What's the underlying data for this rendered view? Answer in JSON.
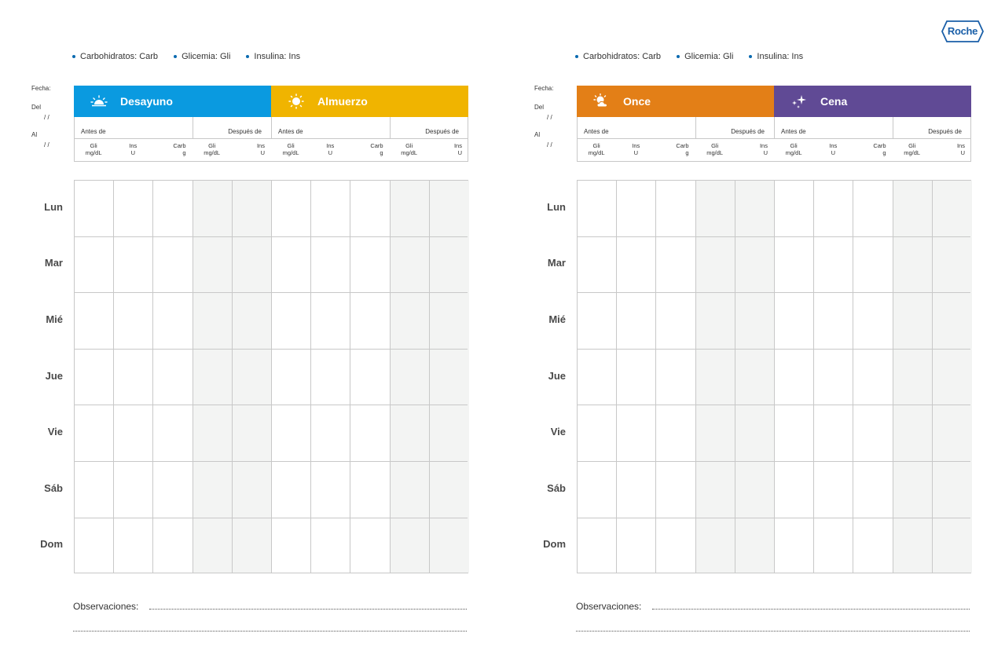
{
  "brand": {
    "logo_text": "Roche",
    "color": "#1a5fa8"
  },
  "legend": [
    {
      "label": "Carbohidratos: Carb"
    },
    {
      "label": "Glicemia: Gli"
    },
    {
      "label": "Insulina: Ins"
    }
  ],
  "date": {
    "fecha_label": "Fecha:",
    "del_label": "Del",
    "al_label": "Al",
    "date_placeholder": "/   /"
  },
  "sub_headers": {
    "before": "Antes de",
    "after": "Después de"
  },
  "units": {
    "gli": {
      "name": "Gli",
      "unit": "mg/dL"
    },
    "ins": {
      "name": "Ins",
      "unit": "U"
    },
    "carb": {
      "name": "Carb",
      "unit": "g"
    }
  },
  "days": [
    "Lun",
    "Mar",
    "Mié",
    "Jue",
    "Vie",
    "Sáb",
    "Dom"
  ],
  "observations_label": "Observaciones:",
  "pages": [
    {
      "meals": [
        {
          "label": "Desayuno",
          "color": "#0a9ae0",
          "icon": "sunrise-icon"
        },
        {
          "label": "Almuerzo",
          "color": "#f0b400",
          "icon": "sun-icon"
        }
      ]
    },
    {
      "meals": [
        {
          "label": "Once",
          "color": "#e37f17",
          "icon": "sun-cloud-icon"
        },
        {
          "label": "Cena",
          "color": "#604a95",
          "icon": "stars-icon"
        }
      ]
    }
  ]
}
